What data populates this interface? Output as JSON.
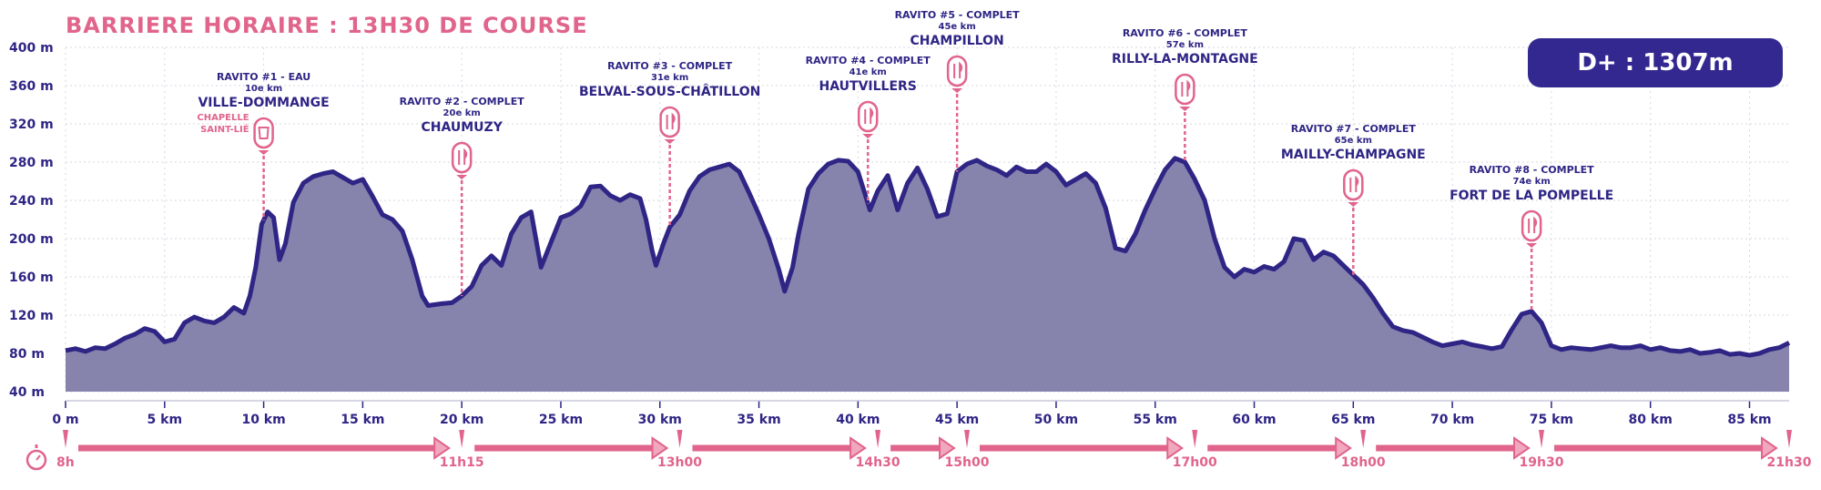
{
  "header": {
    "title": "BARRIERE HORAIRE : 13H30 DE COURSE",
    "elevation_gain": "D+ : 1307m"
  },
  "colors": {
    "navy": "#2e2585",
    "fill": "#8683ad",
    "pink": "#e0648c",
    "grid": "#d7d7e3"
  },
  "chart_data": {
    "type": "area",
    "xlabel": "",
    "ylabel": "",
    "xlim": [
      0,
      87
    ],
    "ylim": [
      40,
      400
    ],
    "grid": true,
    "x_ticks": [
      {
        "value": 0,
        "label": "0 m"
      },
      {
        "value": 5,
        "label": "5 km"
      },
      {
        "value": 10,
        "label": "10 km"
      },
      {
        "value": 15,
        "label": "15 km"
      },
      {
        "value": 20,
        "label": "20 km"
      },
      {
        "value": 25,
        "label": "25 km"
      },
      {
        "value": 30,
        "label": "30 km"
      },
      {
        "value": 35,
        "label": "35 km"
      },
      {
        "value": 40,
        "label": "40 km"
      },
      {
        "value": 45,
        "label": "45 km"
      },
      {
        "value": 50,
        "label": "50 km"
      },
      {
        "value": 55,
        "label": "55 km"
      },
      {
        "value": 60,
        "label": "60 km"
      },
      {
        "value": 65,
        "label": "65 km"
      },
      {
        "value": 70,
        "label": "70 km"
      },
      {
        "value": 75,
        "label": "75 km"
      },
      {
        "value": 80,
        "label": "80 km"
      },
      {
        "value": 85,
        "label": "85 km"
      }
    ],
    "y_ticks": [
      {
        "value": 40,
        "label": "40 m"
      },
      {
        "value": 80,
        "label": "80 m"
      },
      {
        "value": 120,
        "label": "120 m"
      },
      {
        "value": 160,
        "label": "160 m"
      },
      {
        "value": 200,
        "label": "200 m"
      },
      {
        "value": 240,
        "label": "240 m"
      },
      {
        "value": 280,
        "label": "280 m"
      },
      {
        "value": 320,
        "label": "320 m"
      },
      {
        "value": 360,
        "label": "360 m"
      },
      {
        "value": 400,
        "label": "400 m"
      }
    ],
    "series": [
      {
        "values": [
          [
            0,
            83
          ],
          [
            0.5,
            85
          ],
          [
            1,
            82
          ],
          [
            1.5,
            86
          ],
          [
            2,
            85
          ],
          [
            2.5,
            90
          ],
          [
            3,
            96
          ],
          [
            3.5,
            100
          ],
          [
            4,
            106
          ],
          [
            4.5,
            103
          ],
          [
            5,
            92
          ],
          [
            5.5,
            95
          ],
          [
            6,
            112
          ],
          [
            6.5,
            118
          ],
          [
            7,
            114
          ],
          [
            7.5,
            112
          ],
          [
            8,
            118
          ],
          [
            8.5,
            128
          ],
          [
            9,
            122
          ],
          [
            9.3,
            140
          ],
          [
            9.6,
            170
          ],
          [
            9.9,
            215
          ],
          [
            10.2,
            228
          ],
          [
            10.5,
            222
          ],
          [
            10.8,
            178
          ],
          [
            11.1,
            195
          ],
          [
            11.5,
            238
          ],
          [
            12,
            258
          ],
          [
            12.5,
            265
          ],
          [
            13,
            268
          ],
          [
            13.5,
            270
          ],
          [
            14,
            264
          ],
          [
            14.5,
            258
          ],
          [
            15,
            262
          ],
          [
            15.5,
            244
          ],
          [
            16,
            225
          ],
          [
            16.5,
            220
          ],
          [
            17,
            208
          ],
          [
            17.5,
            178
          ],
          [
            18,
            140
          ],
          [
            18.3,
            130
          ],
          [
            19,
            132
          ],
          [
            19.5,
            133
          ],
          [
            20,
            140
          ],
          [
            20.5,
            150
          ],
          [
            21,
            172
          ],
          [
            21.5,
            182
          ],
          [
            22,
            172
          ],
          [
            22.5,
            205
          ],
          [
            23,
            222
          ],
          [
            23.5,
            228
          ],
          [
            24,
            170
          ],
          [
            24.5,
            196
          ],
          [
            25,
            222
          ],
          [
            25.5,
            226
          ],
          [
            26,
            234
          ],
          [
            26.5,
            254
          ],
          [
            27,
            255
          ],
          [
            27.5,
            245
          ],
          [
            28,
            240
          ],
          [
            28.5,
            246
          ],
          [
            29,
            242
          ],
          [
            29.3,
            220
          ],
          [
            29.6,
            188
          ],
          [
            29.8,
            172
          ],
          [
            30.2,
            196
          ],
          [
            30.5,
            212
          ],
          [
            31,
            225
          ],
          [
            31.5,
            250
          ],
          [
            32,
            265
          ],
          [
            32.5,
            272
          ],
          [
            33,
            275
          ],
          [
            33.5,
            278
          ],
          [
            34,
            270
          ],
          [
            34.5,
            248
          ],
          [
            35,
            225
          ],
          [
            35.5,
            200
          ],
          [
            36,
            168
          ],
          [
            36.3,
            145
          ],
          [
            36.7,
            170
          ],
          [
            37,
            205
          ],
          [
            37.5,
            252
          ],
          [
            38,
            268
          ],
          [
            38.5,
            278
          ],
          [
            39,
            282
          ],
          [
            39.5,
            281
          ],
          [
            40,
            270
          ],
          [
            40.3,
            250
          ],
          [
            40.6,
            230
          ],
          [
            41,
            250
          ],
          [
            41.5,
            266
          ],
          [
            42,
            230
          ],
          [
            42.5,
            258
          ],
          [
            43,
            274
          ],
          [
            43.5,
            252
          ],
          [
            44,
            223
          ],
          [
            44.5,
            226
          ],
          [
            45,
            270
          ],
          [
            45.5,
            278
          ],
          [
            46,
            282
          ],
          [
            46.5,
            276
          ],
          [
            47,
            272
          ],
          [
            47.5,
            266
          ],
          [
            48,
            275
          ],
          [
            48.5,
            270
          ],
          [
            49,
            270
          ],
          [
            49.5,
            278
          ],
          [
            50,
            270
          ],
          [
            50.5,
            256
          ],
          [
            51,
            262
          ],
          [
            51.5,
            268
          ],
          [
            52,
            258
          ],
          [
            52.5,
            232
          ],
          [
            53,
            190
          ],
          [
            53.5,
            187
          ],
          [
            54,
            205
          ],
          [
            54.5,
            230
          ],
          [
            55,
            252
          ],
          [
            55.5,
            272
          ],
          [
            56,
            284
          ],
          [
            56.5,
            280
          ],
          [
            57,
            262
          ],
          [
            57.5,
            240
          ],
          [
            58,
            200
          ],
          [
            58.5,
            170
          ],
          [
            59,
            160
          ],
          [
            59.5,
            168
          ],
          [
            60,
            165
          ],
          [
            60.5,
            171
          ],
          [
            61,
            168
          ],
          [
            61.5,
            176
          ],
          [
            62,
            200
          ],
          [
            62.5,
            198
          ],
          [
            63,
            178
          ],
          [
            63.5,
            186
          ],
          [
            64,
            182
          ],
          [
            64.5,
            172
          ],
          [
            65,
            162
          ],
          [
            65.5,
            152
          ],
          [
            66,
            138
          ],
          [
            66.5,
            122
          ],
          [
            67,
            108
          ],
          [
            67.5,
            104
          ],
          [
            68,
            102
          ],
          [
            68.5,
            97
          ],
          [
            69,
            92
          ],
          [
            69.5,
            88
          ],
          [
            70,
            90
          ],
          [
            70.5,
            92
          ],
          [
            71,
            89
          ],
          [
            71.5,
            87
          ],
          [
            72,
            85
          ],
          [
            72.5,
            87
          ],
          [
            73,
            105
          ],
          [
            73.5,
            121
          ],
          [
            74,
            124
          ],
          [
            74.5,
            112
          ],
          [
            75,
            88
          ],
          [
            75.5,
            84
          ],
          [
            76,
            86
          ],
          [
            76.5,
            85
          ],
          [
            77,
            84
          ],
          [
            77.5,
            86
          ],
          [
            78,
            88
          ],
          [
            78.5,
            86
          ],
          [
            79,
            86
          ],
          [
            79.5,
            88
          ],
          [
            80,
            84
          ],
          [
            80.5,
            86
          ],
          [
            81,
            83
          ],
          [
            81.5,
            82
          ],
          [
            82,
            84
          ],
          [
            82.5,
            80
          ],
          [
            83,
            81
          ],
          [
            83.5,
            83
          ],
          [
            84,
            79
          ],
          [
            84.5,
            80
          ],
          [
            85,
            78
          ],
          [
            85.5,
            80
          ],
          [
            86,
            84
          ],
          [
            86.5,
            86
          ],
          [
            87,
            91
          ]
        ]
      }
    ],
    "aid_stations": [
      {
        "km": 10,
        "label": "RAVITO #1 - EAU",
        "distance": "10e km",
        "place": "VILLE-DOMMANGE",
        "note": "CHAPELLE SAINT-LIÉ",
        "icon": "water-cup-icon"
      },
      {
        "km": 20,
        "label": "RAVITO #2 - COMPLET",
        "distance": "20e km",
        "place": "CHAUMUZY",
        "note": "",
        "icon": "fork-knife-icon"
      },
      {
        "km": 30.5,
        "label": "RAVITO #3 - COMPLET",
        "distance": "31e km",
        "place": "BELVAL-SOUS-CHÂTILLON",
        "note": "",
        "icon": "fork-knife-icon"
      },
      {
        "km": 40.5,
        "label": "RAVITO #4 - COMPLET",
        "distance": "41e km",
        "place": "HAUTVILLERS",
        "note": "",
        "icon": "fork-knife-icon"
      },
      {
        "km": 45,
        "label": "RAVITO #5 - COMPLET",
        "distance": "45e km",
        "place": "CHAMPILLON",
        "note": "",
        "icon": "fork-knife-icon"
      },
      {
        "km": 56.5,
        "label": "RAVITO #6 - COMPLET",
        "distance": "57e km",
        "place": "RILLY-LA-MONTAGNE",
        "note": "",
        "icon": "fork-knife-icon"
      },
      {
        "km": 65,
        "label": "RAVITO #7 - COMPLET",
        "distance": "65e km",
        "place": "MAILLY-CHAMPAGNE",
        "note": "",
        "icon": "fork-knife-icon"
      },
      {
        "km": 74,
        "label": "RAVITO #8 - COMPLET",
        "distance": "74e km",
        "place": "FORT DE LA POMPELLE",
        "note": "",
        "icon": "fork-knife-icon"
      }
    ],
    "time_barriers": [
      {
        "km": 0,
        "time": "8h"
      },
      {
        "km": 20,
        "time": "11h15"
      },
      {
        "km": 31,
        "time": "13h00"
      },
      {
        "km": 41,
        "time": "14h30"
      },
      {
        "km": 45.5,
        "time": "15h00"
      },
      {
        "km": 57,
        "time": "17h00"
      },
      {
        "km": 65.5,
        "time": "18h00"
      },
      {
        "km": 74.5,
        "time": "19h30"
      },
      {
        "km": 87,
        "time": "21h30"
      }
    ]
  }
}
